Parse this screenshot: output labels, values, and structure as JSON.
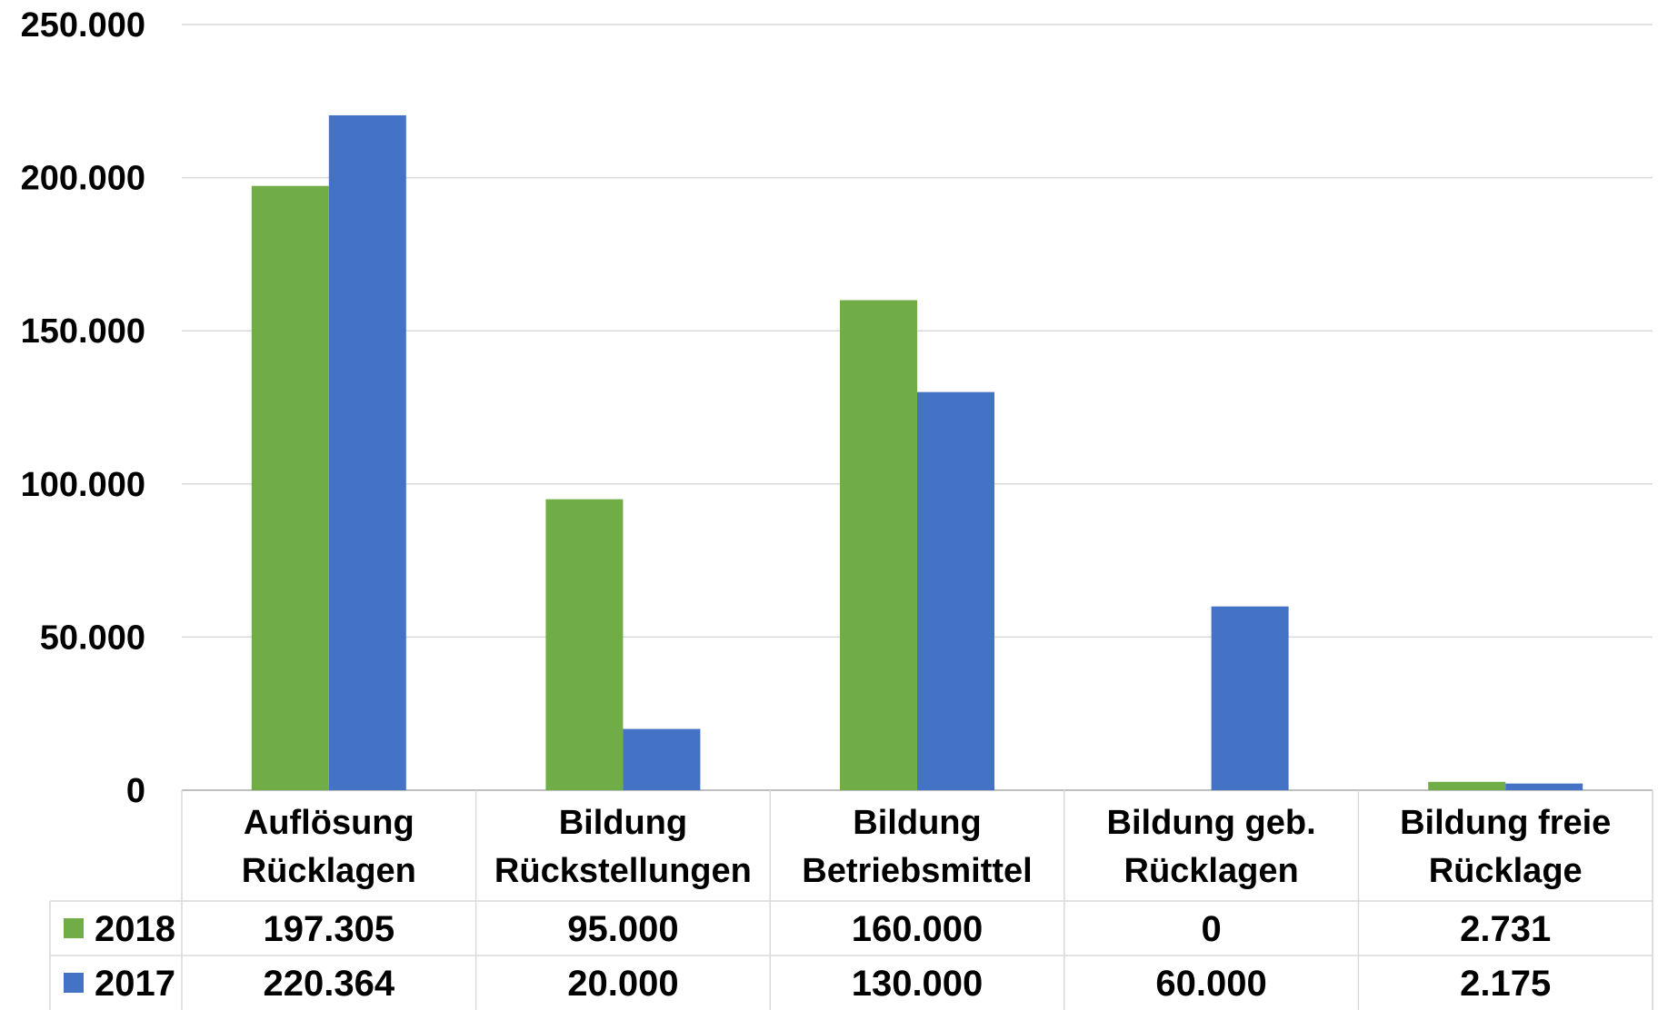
{
  "chart_data": {
    "type": "bar",
    "title": "",
    "xlabel": "",
    "ylabel": "",
    "ylim": [
      0,
      250000
    ],
    "y_ticks": [
      "0",
      "50.000",
      "100.000",
      "150.000",
      "200.000",
      "250.000"
    ],
    "y_tick_values": [
      0,
      50000,
      100000,
      150000,
      200000,
      250000
    ],
    "grid": true,
    "legend": "data-table-left",
    "categories": [
      [
        "Auflösung",
        "Rücklagen"
      ],
      [
        "Bildung",
        "Rückstellungen"
      ],
      [
        "Bildung",
        "Betriebsmittel"
      ],
      [
        "Bildung  geb.",
        "Rücklagen"
      ],
      [
        "Bildung freie",
        "Rücklage"
      ]
    ],
    "series": [
      {
        "name": "2018",
        "color": "#70AD47",
        "values": [
          197305,
          95000,
          160000,
          0,
          2731
        ],
        "labels": [
          "197.305",
          "95.000",
          "160.000",
          "0",
          "2.731"
        ]
      },
      {
        "name": "2017",
        "color": "#4472C4",
        "values": [
          220364,
          20000,
          130000,
          60000,
          2175
        ],
        "labels": [
          "220.364",
          "20.000",
          "130.000",
          "60.000",
          "2.175"
        ]
      }
    ]
  }
}
